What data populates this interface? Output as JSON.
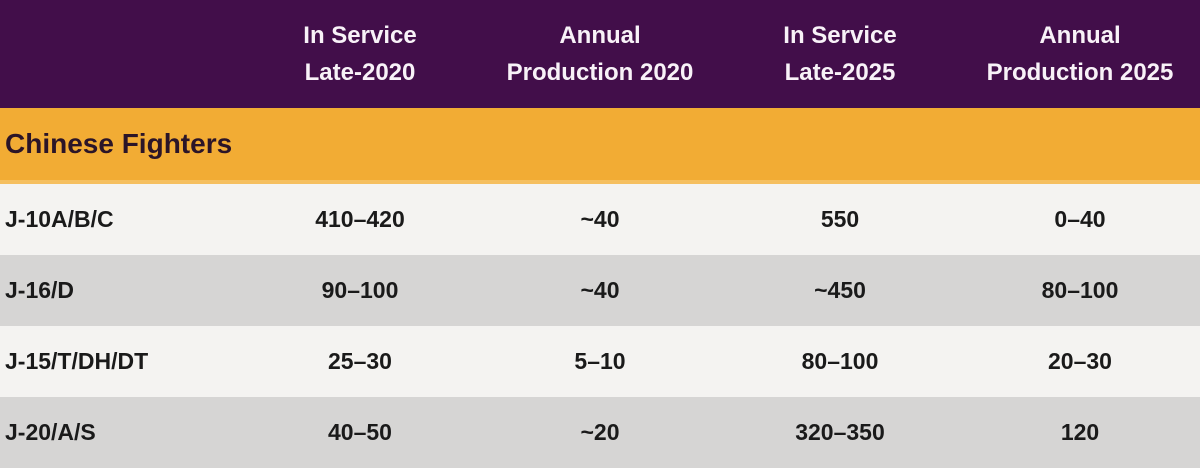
{
  "chart_data": {
    "type": "table",
    "title": "Chinese Fighters",
    "column_headers": [
      {
        "line1": "In Service",
        "line2": "Late-2020"
      },
      {
        "line1": "Annual",
        "line2": "Production 2020"
      },
      {
        "line1": "In Service",
        "line2": "Late-2025"
      },
      {
        "line1": "Annual",
        "line2": "Production 2025"
      }
    ],
    "rows": [
      {
        "label": "J-10A/B/C",
        "values": [
          "410–420",
          "~40",
          "550",
          "0–40"
        ]
      },
      {
        "label": "J-16/D",
        "values": [
          "90–100",
          "~40",
          "~450",
          "80–100"
        ]
      },
      {
        "label": "J-15/T/DH/DT",
        "values": [
          "25–30",
          "5–10",
          "80–100",
          "20–30"
        ]
      },
      {
        "label": "J-20/A/S",
        "values": [
          "40–50",
          "~20",
          "320–350",
          "120"
        ]
      }
    ]
  },
  "colors": {
    "header_bg": "#420E4A",
    "header_text": "#F8F2F8",
    "section_bg": "#F2AC34",
    "section_border": "#F5BF60",
    "section_text": "#2B1528",
    "row_light_bg": "#F4F3F1",
    "row_dark_bg": "#D6D5D4",
    "row_text": "#1A1A1A"
  }
}
